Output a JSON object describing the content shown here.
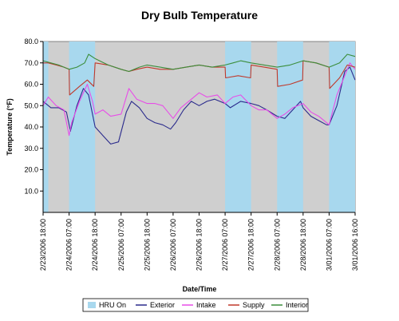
{
  "chart_data": {
    "type": "line",
    "title": "Dry Bulb Temperature",
    "xlabel": "Date/Time",
    "ylabel": "Temperature (°F)",
    "ylim": [
      0,
      80
    ],
    "yticks": [
      "10.0",
      "20.0",
      "30.0",
      "40.0",
      "50.0",
      "60.0",
      "70.0",
      "80.0"
    ],
    "xticks": [
      "2/23/2006 18:00",
      "2/24/2006 07:00",
      "2/24/2006 18:00",
      "2/25/2006 07:00",
      "2/25/2006 18:00",
      "2/26/2006 07:00",
      "2/26/2006 18:00",
      "2/27/2006 07:00",
      "2/27/2006 18:00",
      "2/28/2006 07:00",
      "2/28/2006 18:00",
      "3/01/2006 07:00",
      "3/01/2006 16:00"
    ],
    "grid": false,
    "legend_position": "bottom",
    "hru_on_periods": [
      [
        0,
        0.2
      ],
      [
        1,
        2
      ],
      [
        7,
        8
      ],
      [
        9,
        10
      ],
      [
        11,
        12
      ]
    ],
    "series": [
      {
        "name": "HRU On",
        "color": "#a8d8ee",
        "kind": "band"
      },
      {
        "name": "Exterior",
        "color": "#2b2b8c",
        "values": [
          [
            0,
            52
          ],
          [
            0.3,
            49
          ],
          [
            0.6,
            49
          ],
          [
            0.9,
            47
          ],
          [
            1.0,
            41
          ],
          [
            1.05,
            38
          ],
          [
            1.3,
            50
          ],
          [
            1.55,
            58
          ],
          [
            1.75,
            55
          ],
          [
            2.0,
            40
          ],
          [
            2.3,
            36
          ],
          [
            2.6,
            32
          ],
          [
            2.9,
            33
          ],
          [
            3.2,
            47
          ],
          [
            3.4,
            52
          ],
          [
            3.7,
            49
          ],
          [
            4.0,
            44
          ],
          [
            4.3,
            42
          ],
          [
            4.6,
            41
          ],
          [
            4.9,
            39
          ],
          [
            5.1,
            42
          ],
          [
            5.4,
            48
          ],
          [
            5.7,
            52
          ],
          [
            6.0,
            50
          ],
          [
            6.3,
            52
          ],
          [
            6.6,
            53
          ],
          [
            7.0,
            51
          ],
          [
            7.2,
            49
          ],
          [
            7.6,
            52
          ],
          [
            8.0,
            51
          ],
          [
            8.3,
            50
          ],
          [
            8.6,
            48
          ],
          [
            9.0,
            45
          ],
          [
            9.3,
            44
          ],
          [
            9.6,
            48
          ],
          [
            9.9,
            52
          ],
          [
            10.0,
            49
          ],
          [
            10.3,
            45
          ],
          [
            10.6,
            43
          ],
          [
            10.9,
            41
          ],
          [
            11.0,
            41
          ],
          [
            11.3,
            50
          ],
          [
            11.6,
            66
          ],
          [
            11.8,
            68
          ],
          [
            12.0,
            62
          ]
        ]
      },
      {
        "name": "Intake",
        "color": "#e84de8",
        "values": [
          [
            0,
            50
          ],
          [
            0.2,
            54
          ],
          [
            0.5,
            50
          ],
          [
            0.8,
            48
          ],
          [
            1.0,
            36
          ],
          [
            1.1,
            42
          ],
          [
            1.4,
            52
          ],
          [
            1.7,
            60
          ],
          [
            1.9,
            52
          ],
          [
            2.0,
            46
          ],
          [
            2.3,
            48
          ],
          [
            2.6,
            45
          ],
          [
            3.0,
            46
          ],
          [
            3.3,
            58
          ],
          [
            3.6,
            53
          ],
          [
            4.0,
            51
          ],
          [
            4.3,
            51
          ],
          [
            4.6,
            50
          ],
          [
            5.0,
            44
          ],
          [
            5.3,
            49
          ],
          [
            5.6,
            52
          ],
          [
            6.0,
            56
          ],
          [
            6.3,
            54
          ],
          [
            6.7,
            55
          ],
          [
            7.0,
            51
          ],
          [
            7.3,
            54
          ],
          [
            7.6,
            55
          ],
          [
            8.0,
            50
          ],
          [
            8.3,
            48
          ],
          [
            8.6,
            48
          ],
          [
            9.0,
            44
          ],
          [
            9.3,
            46
          ],
          [
            9.6,
            49
          ],
          [
            10.0,
            51
          ],
          [
            10.3,
            47
          ],
          [
            10.6,
            45
          ],
          [
            10.9,
            42
          ],
          [
            11.0,
            41
          ],
          [
            11.3,
            55
          ],
          [
            11.6,
            64
          ],
          [
            11.8,
            70
          ],
          [
            12.0,
            67
          ]
        ]
      },
      {
        "name": "Supply",
        "color": "#c0392b",
        "values": [
          [
            0,
            70
          ],
          [
            0.2,
            70
          ],
          [
            0.5,
            69
          ],
          [
            0.8,
            68
          ],
          [
            1.0,
            67
          ],
          [
            1.02,
            55
          ],
          [
            1.4,
            59
          ],
          [
            1.7,
            62
          ],
          [
            1.95,
            59
          ],
          [
            2.0,
            70
          ],
          [
            2.5,
            69
          ],
          [
            3.0,
            67
          ],
          [
            3.3,
            66
          ],
          [
            3.6,
            67
          ],
          [
            4.0,
            68
          ],
          [
            4.5,
            67
          ],
          [
            5.0,
            67
          ],
          [
            5.5,
            68
          ],
          [
            6.0,
            69
          ],
          [
            6.5,
            68
          ],
          [
            7.0,
            68
          ],
          [
            7.02,
            63
          ],
          [
            7.5,
            64
          ],
          [
            7.98,
            63
          ],
          [
            8.0,
            69
          ],
          [
            8.5,
            68
          ],
          [
            9.0,
            67
          ],
          [
            9.02,
            59
          ],
          [
            9.5,
            60
          ],
          [
            9.98,
            62
          ],
          [
            10.0,
            71
          ],
          [
            10.5,
            70
          ],
          [
            11.0,
            68
          ],
          [
            11.02,
            58
          ],
          [
            11.4,
            63
          ],
          [
            11.7,
            69
          ],
          [
            12.0,
            68
          ]
        ]
      },
      {
        "name": "Interior",
        "color": "#3b8e3b",
        "values": [
          [
            0,
            71
          ],
          [
            0.3,
            70
          ],
          [
            0.6,
            69
          ],
          [
            1.0,
            67
          ],
          [
            1.3,
            68
          ],
          [
            1.6,
            70
          ],
          [
            1.75,
            74
          ],
          [
            2.0,
            72
          ],
          [
            2.5,
            69
          ],
          [
            3.0,
            67
          ],
          [
            3.3,
            66
          ],
          [
            3.7,
            68
          ],
          [
            4.0,
            69
          ],
          [
            4.5,
            68
          ],
          [
            5.0,
            67
          ],
          [
            5.5,
            68
          ],
          [
            6.0,
            69
          ],
          [
            6.5,
            68
          ],
          [
            7.0,
            69
          ],
          [
            7.3,
            70
          ],
          [
            7.6,
            71
          ],
          [
            8.0,
            70
          ],
          [
            8.5,
            69
          ],
          [
            9.0,
            68
          ],
          [
            9.5,
            69
          ],
          [
            10.0,
            71
          ],
          [
            10.5,
            70
          ],
          [
            11.0,
            68
          ],
          [
            11.4,
            70
          ],
          [
            11.7,
            74
          ],
          [
            12.0,
            73
          ]
        ]
      }
    ]
  }
}
